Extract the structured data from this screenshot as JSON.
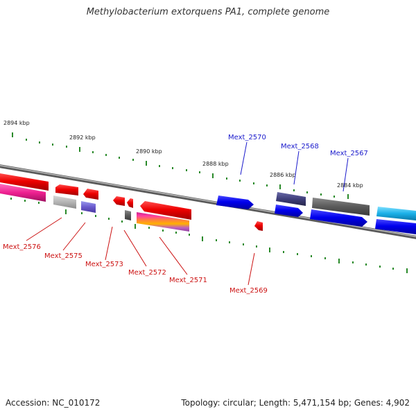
{
  "title": "Methylobacterium extorquens PA1, complete genome",
  "footer": {
    "accession": "Accession: NC_010172",
    "stats": "Topology: circular; Length: 5,471,154 bp; Genes: 4,902"
  },
  "kbp_labels": [
    {
      "text": "2894 kbp",
      "pos": 2894
    },
    {
      "text": "2892 kbp",
      "pos": 2892
    },
    {
      "text": "2890 kbp",
      "pos": 2890
    },
    {
      "text": "2888 kbp",
      "pos": 2888
    },
    {
      "text": "2886 kbp",
      "pos": 2886
    },
    {
      "text": "2884 kbp",
      "pos": 2884
    }
  ],
  "gene_labels_top": [
    {
      "text": "Mext_2570",
      "color": "#1a1acc"
    },
    {
      "text": "Mext_2568",
      "color": "#1a1acc"
    },
    {
      "text": "Mext_2567",
      "color": "#1a1acc"
    }
  ],
  "gene_labels_bottom": [
    {
      "text": "Mext_2576",
      "color": "#cc1111"
    },
    {
      "text": "Mext_2575",
      "color": "#cc1111"
    },
    {
      "text": "Mext_2573",
      "color": "#cc1111"
    },
    {
      "text": "Mext_2572",
      "color": "#cc1111"
    },
    {
      "text": "Mext_2571",
      "color": "#cc1111"
    },
    {
      "text": "Mext_2569",
      "color": "#cc1111"
    }
  ],
  "colors": {
    "forward": "#0000ee",
    "reverse": "#ee0000",
    "backbone": "#777777",
    "tick": "#2a8a2a"
  }
}
